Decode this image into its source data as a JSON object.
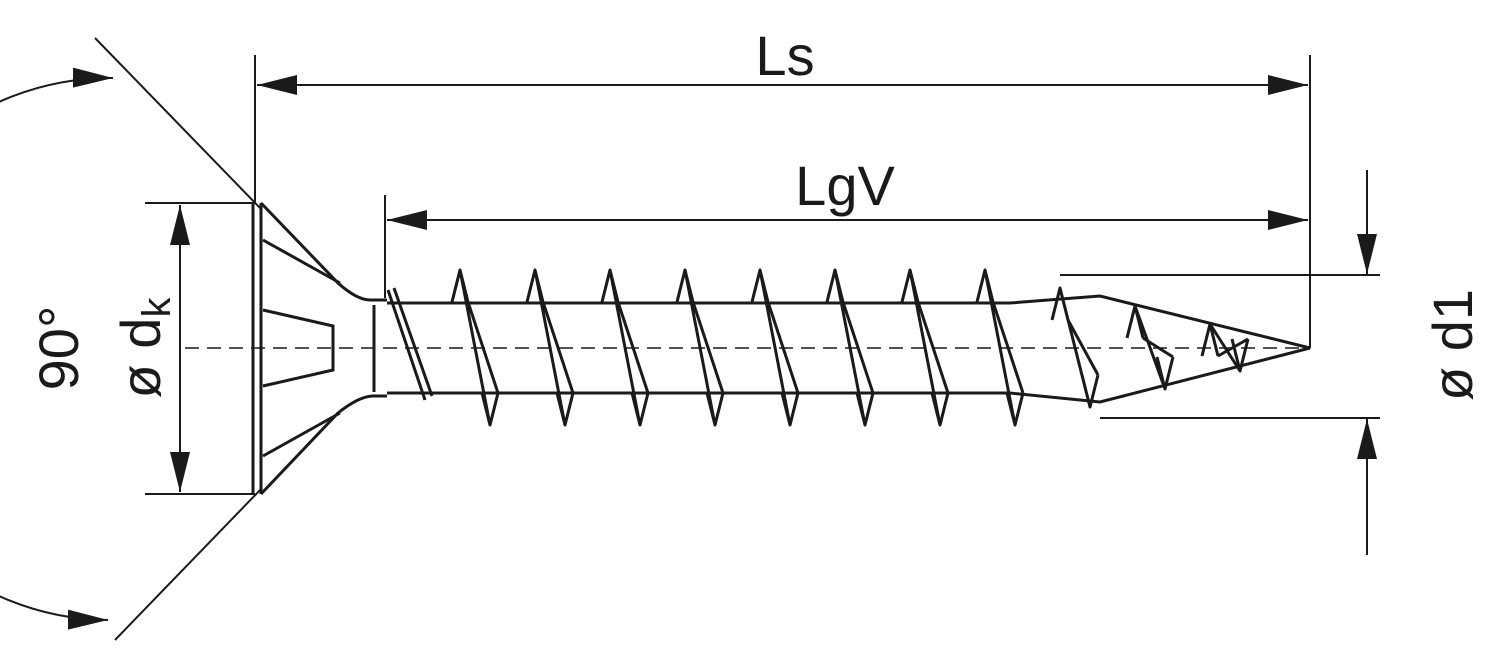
{
  "labels": {
    "overall_length": "Ls",
    "thread_length": "LgV",
    "head_angle": "90°",
    "head_diameter_symbol": "ø d",
    "head_diameter_subscript": "k",
    "thread_diameter": "ø d1"
  },
  "colors": {
    "line": "#1a1a1a",
    "background": "#ffffff"
  },
  "thread_turns": 12
}
